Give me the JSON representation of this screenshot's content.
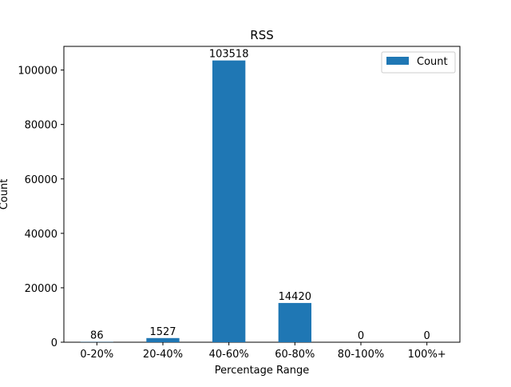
{
  "chart_data": {
    "type": "bar",
    "title": "RSS",
    "xlabel": "Percentage Range",
    "ylabel": "Count",
    "categories": [
      "0-20%",
      "20-40%",
      "40-60%",
      "60-80%",
      "80-100%",
      "100%+"
    ],
    "series": [
      {
        "name": "Count",
        "values": [
          86,
          1527,
          103518,
          14420,
          0,
          0
        ],
        "color": "#1f77b4"
      }
    ],
    "data_labels": [
      "86",
      "1527",
      "103518",
      "14420",
      "0",
      "0"
    ],
    "ylim": [
      0,
      108694
    ],
    "yticks": [
      0,
      20000,
      40000,
      60000,
      80000,
      100000
    ],
    "ytick_labels": [
      "0",
      "20000",
      "40000",
      "60000",
      "80000",
      "100000"
    ],
    "grid": false,
    "legend": {
      "position": "top-right",
      "entries": [
        "Count"
      ]
    }
  }
}
